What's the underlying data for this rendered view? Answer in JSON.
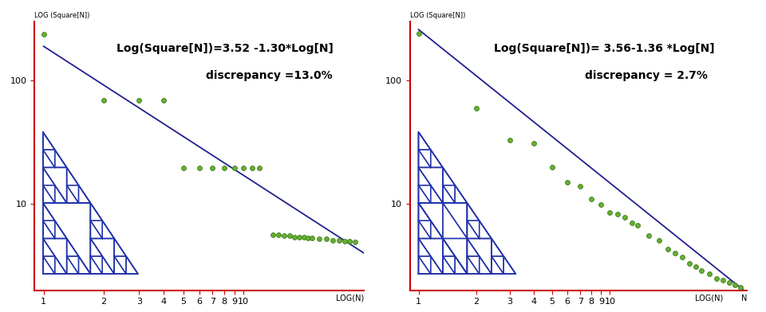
{
  "chart_data": [
    {
      "type": "scatter",
      "log": true,
      "grid": false,
      "annotations": [
        "Log(Square[N])=3.52 -1.30*Log[N]",
        "discrepancy =13.0%"
      ],
      "y_label": "LOG (Square[N])",
      "x_label": "LOG(N)",
      "x": [
        1,
        2,
        3,
        4,
        5,
        6,
        7,
        8,
        9,
        10,
        11,
        12,
        14,
        15,
        16,
        17,
        18,
        19,
        20,
        21,
        22,
        24,
        26,
        28,
        30,
        32,
        34,
        36
      ],
      "values": [
        237,
        69,
        69,
        69,
        19.7,
        19.7,
        19.7,
        19.7,
        19.7,
        19.7,
        19.7,
        19.7,
        5.6,
        5.6,
        5.5,
        5.5,
        5.4,
        5.4,
        5.4,
        5.3,
        5.3,
        5.2,
        5.2,
        5.1,
        5.1,
        5.0,
        5.0,
        4.9
      ],
      "color": "#66b032",
      "marker": "o",
      "fit": {
        "x": [
          1,
          40
        ],
        "values": [
          190,
          4
        ],
        "color": "#1f1f8f",
        "line_style": "solid"
      },
      "xlim": [
        0.9,
        40
      ],
      "ylim": [
        2,
        300
      ],
      "xticks": [
        1,
        2,
        3,
        4,
        5,
        6,
        7,
        8,
        9,
        10
      ],
      "yticks": [
        10,
        100
      ]
    },
    {
      "type": "scatter",
      "log": true,
      "grid": false,
      "annotations": [
        "Log(Square[N])= 3.56-1.36 *Log[N]",
        "discrepancy = 2.7%"
      ],
      "y_label": "LOG (Square[N])",
      "x_label": "LOG(N)",
      "x_end_label": "N",
      "x": [
        1,
        2,
        3,
        4,
        5,
        6,
        7,
        8,
        9,
        10,
        11,
        12,
        13,
        14,
        16,
        18,
        20,
        22,
        24,
        26,
        28,
        30,
        33,
        36,
        39,
        42,
        45,
        48
      ],
      "values": [
        240,
        60,
        33,
        31,
        20,
        15,
        14,
        11,
        9.9,
        8.5,
        8.3,
        7.8,
        7.0,
        6.7,
        5.5,
        5.1,
        4.3,
        4.0,
        3.7,
        3.3,
        3.1,
        2.9,
        2.7,
        2.5,
        2.4,
        2.3,
        2.2,
        2.1
      ],
      "color": "#66b032",
      "marker": "o",
      "fit": {
        "x": [
          1,
          50
        ],
        "values": [
          260,
          2.0
        ],
        "color": "#1f1f8f",
        "line_style": "solid"
      },
      "xlim": [
        0.9,
        52
      ],
      "ylim": [
        2,
        300
      ],
      "xticks": [
        1,
        2,
        3,
        4,
        5,
        6,
        7,
        8,
        9,
        10
      ],
      "yticks": [
        10,
        100
      ]
    }
  ]
}
